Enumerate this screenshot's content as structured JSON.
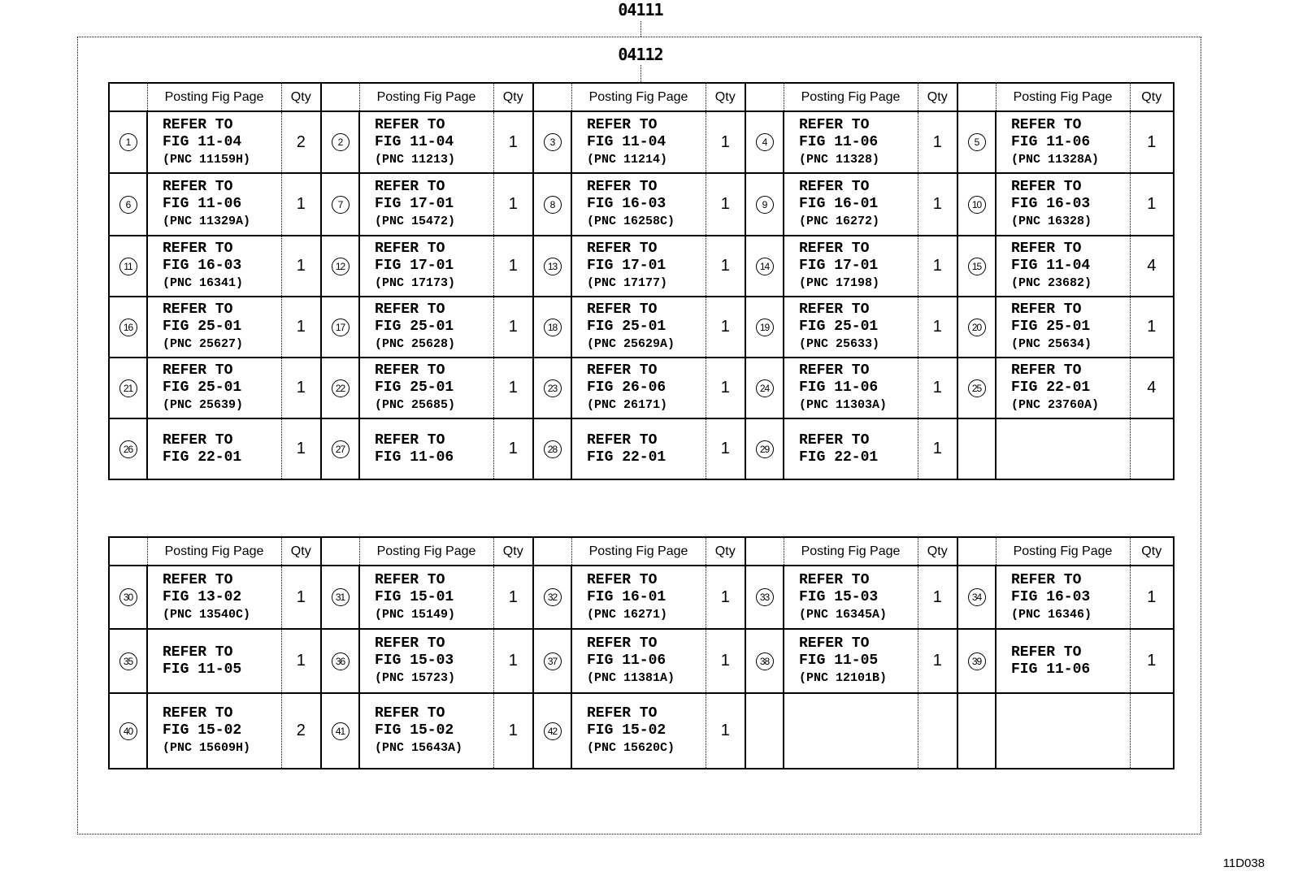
{
  "labels": {
    "top": "04111",
    "inner": "04112",
    "code": "11D038"
  },
  "header": {
    "posting": "Posting Fig Page",
    "qty": "Qty"
  },
  "tables": [
    {
      "rows": [
        [
          {
            "num": "1",
            "refer": "REFER TO",
            "fig": "FIG 11-04",
            "pnc": "(PNC 11159H)",
            "qty": "2"
          },
          {
            "num": "2",
            "refer": "REFER TO",
            "fig": "FIG 11-04",
            "pnc": "(PNC 11213)",
            "qty": "1"
          },
          {
            "num": "3",
            "refer": "REFER TO",
            "fig": "FIG 11-04",
            "pnc": "(PNC 11214)",
            "qty": "1"
          },
          {
            "num": "4",
            "refer": "REFER TO",
            "fig": "FIG 11-06",
            "pnc": "(PNC 11328)",
            "qty": "1"
          },
          {
            "num": "5",
            "refer": "REFER TO",
            "fig": "FIG 11-06",
            "pnc": "(PNC 11328A)",
            "qty": "1"
          }
        ],
        [
          {
            "num": "6",
            "refer": "REFER TO",
            "fig": "FIG 11-06",
            "pnc": "(PNC 11329A)",
            "qty": "1"
          },
          {
            "num": "7",
            "refer": "REFER TO",
            "fig": "FIG 17-01",
            "pnc": "(PNC 15472)",
            "qty": "1"
          },
          {
            "num": "8",
            "refer": "REFER TO",
            "fig": "FIG 16-03",
            "pnc": "(PNC 16258C)",
            "qty": "1"
          },
          {
            "num": "9",
            "refer": "REFER TO",
            "fig": "FIG 16-01",
            "pnc": "(PNC 16272)",
            "qty": "1"
          },
          {
            "num": "10",
            "refer": "REFER TO",
            "fig": "FIG 16-03",
            "pnc": "(PNC 16328)",
            "qty": "1"
          }
        ],
        [
          {
            "num": "11",
            "refer": "REFER TO",
            "fig": "FIG 16-03",
            "pnc": "(PNC 16341)",
            "qty": "1"
          },
          {
            "num": "12",
            "refer": "REFER TO",
            "fig": "FIG 17-01",
            "pnc": "(PNC 17173)",
            "qty": "1"
          },
          {
            "num": "13",
            "refer": "REFER TO",
            "fig": "FIG 17-01",
            "pnc": "(PNC 17177)",
            "qty": "1"
          },
          {
            "num": "14",
            "refer": "REFER TO",
            "fig": "FIG 17-01",
            "pnc": "(PNC 17198)",
            "qty": "1"
          },
          {
            "num": "15",
            "refer": "REFER TO",
            "fig": "FIG 11-04",
            "pnc": "(PNC 23682)",
            "qty": "4"
          }
        ],
        [
          {
            "num": "16",
            "refer": "REFER TO",
            "fig": "FIG 25-01",
            "pnc": "(PNC 25627)",
            "qty": "1"
          },
          {
            "num": "17",
            "refer": "REFER TO",
            "fig": "FIG 25-01",
            "pnc": "(PNC 25628)",
            "qty": "1"
          },
          {
            "num": "18",
            "refer": "REFER TO",
            "fig": "FIG 25-01",
            "pnc": "(PNC 25629A)",
            "qty": "1"
          },
          {
            "num": "19",
            "refer": "REFER TO",
            "fig": "FIG 25-01",
            "pnc": "(PNC 25633)",
            "qty": "1"
          },
          {
            "num": "20",
            "refer": "REFER TO",
            "fig": "FIG 25-01",
            "pnc": "(PNC 25634)",
            "qty": "1"
          }
        ],
        [
          {
            "num": "21",
            "refer": "REFER TO",
            "fig": "FIG 25-01",
            "pnc": "(PNC 25639)",
            "qty": "1"
          },
          {
            "num": "22",
            "refer": "REFER TO",
            "fig": "FIG 25-01",
            "pnc": "(PNC 25685)",
            "qty": "1"
          },
          {
            "num": "23",
            "refer": "REFER TO",
            "fig": "FIG 26-06",
            "pnc": "(PNC 26171)",
            "qty": "1"
          },
          {
            "num": "24",
            "refer": "REFER TO",
            "fig": "FIG 11-06",
            "pnc": "(PNC 11303A)",
            "qty": "1"
          },
          {
            "num": "25",
            "refer": "REFER TO",
            "fig": "FIG 22-01",
            "pnc": "(PNC 23760A)",
            "qty": "4"
          }
        ],
        [
          {
            "num": "26",
            "refer": "REFER TO",
            "fig": "FIG 22-01",
            "pnc": "",
            "qty": "1"
          },
          {
            "num": "27",
            "refer": "REFER TO",
            "fig": "FIG 11-06",
            "pnc": "",
            "qty": "1"
          },
          {
            "num": "28",
            "refer": "REFER TO",
            "fig": "FIG 22-01",
            "pnc": "",
            "qty": "1"
          },
          {
            "num": "29",
            "refer": "REFER TO",
            "fig": "FIG 22-01",
            "pnc": "",
            "qty": "1"
          },
          null
        ]
      ]
    },
    {
      "rows": [
        [
          {
            "num": "30",
            "refer": "REFER TO",
            "fig": "FIG 13-02",
            "pnc": "(PNC 13540C)",
            "qty": "1"
          },
          {
            "num": "31",
            "refer": "REFER TO",
            "fig": "FIG 15-01",
            "pnc": "(PNC 15149)",
            "qty": "1"
          },
          {
            "num": "32",
            "refer": "REFER TO",
            "fig": "FIG 16-01",
            "pnc": "(PNC 16271)",
            "qty": "1"
          },
          {
            "num": "33",
            "refer": "REFER TO",
            "fig": "FIG 15-03",
            "pnc": "(PNC 16345A)",
            "qty": "1"
          },
          {
            "num": "34",
            "refer": "REFER TO",
            "fig": "FIG 16-03",
            "pnc": "(PNC 16346)",
            "qty": "1"
          }
        ],
        [
          {
            "num": "35",
            "refer": "REFER TO",
            "fig": "FIG 11-05",
            "pnc": "",
            "qty": "1"
          },
          {
            "num": "36",
            "refer": "REFER TO",
            "fig": "FIG 15-03",
            "pnc": "(PNC 15723)",
            "qty": "1"
          },
          {
            "num": "37",
            "refer": "REFER TO",
            "fig": "FIG 11-06",
            "pnc": "(PNC 11381A)",
            "qty": "1"
          },
          {
            "num": "38",
            "refer": "REFER TO",
            "fig": "FIG 11-05",
            "pnc": "(PNC 12101B)",
            "qty": "1"
          },
          {
            "num": "39",
            "refer": "REFER TO",
            "fig": "FIG 11-06",
            "pnc": "",
            "qty": "1"
          }
        ],
        [
          {
            "num": "40",
            "refer": "REFER TO",
            "fig": "FIG 15-02",
            "pnc": "(PNC 15609H)",
            "qty": "2"
          },
          {
            "num": "41",
            "refer": "REFER TO",
            "fig": "FIG 15-02",
            "pnc": "(PNC 15643A)",
            "qty": "1"
          },
          {
            "num": "42",
            "refer": "REFER TO",
            "fig": "FIG 15-02",
            "pnc": "(PNC 15620C)",
            "qty": "1"
          },
          null,
          null
        ]
      ]
    }
  ]
}
